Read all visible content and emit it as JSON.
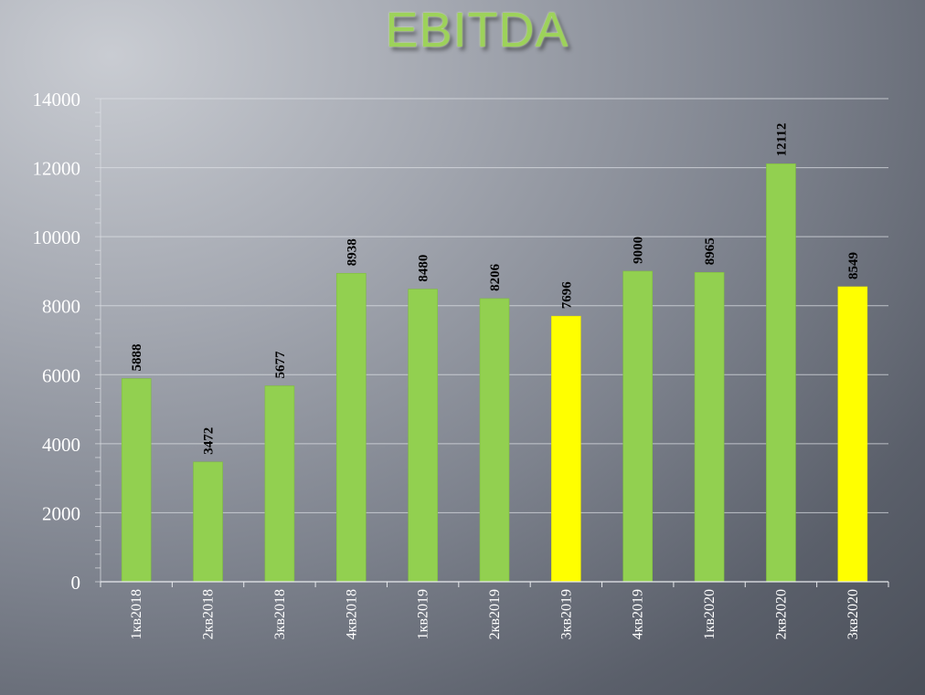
{
  "chart_data": {
    "type": "bar",
    "title": "EBITDA",
    "xlabel": "",
    "ylabel": "",
    "ylim": [
      0,
      14000
    ],
    "yticks": [
      0,
      2000,
      4000,
      6000,
      8000,
      10000,
      12000,
      14000
    ],
    "grid": true,
    "categories": [
      "1кв2018",
      "2кв2018",
      "3кв2018",
      "4кв2018",
      "1кв2019",
      "2кв2019",
      "3кв2019",
      "4кв2019",
      "1кв2020",
      "2кв2020",
      "3кв2020"
    ],
    "values": [
      5888,
      3472,
      5677,
      8938,
      8480,
      8206,
      7696,
      9000,
      8965,
      12112,
      8549
    ],
    "data_labels": [
      "5888",
      "3472",
      "5677",
      "8938",
      "8480",
      "8206",
      "7696",
      "9000",
      "8965",
      "12112",
      "8549"
    ],
    "highlighted": [
      "3кв2019",
      "3кв2020"
    ],
    "colors": {
      "bar": "#92d050",
      "highlight": "#ffff00",
      "title": "#9dd25a",
      "axis_text": "#ffffff",
      "data_label": "#000000",
      "gridline": "#dcdfe4"
    }
  }
}
